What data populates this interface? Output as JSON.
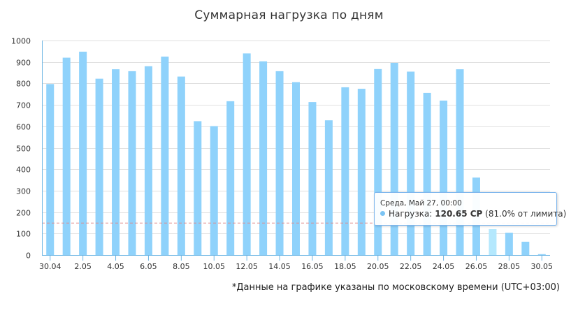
{
  "chart_data": {
    "type": "bar",
    "title": "Суммарная нагрузка по дням",
    "ylim": [
      0,
      1000
    ],
    "yticks": [
      0,
      100,
      200,
      300,
      400,
      500,
      600,
      700,
      800,
      900,
      1000
    ],
    "xtick_labels": [
      "30.04",
      "2.05",
      "4.05",
      "6.05",
      "8.05",
      "10.05",
      "12.05",
      "14.05",
      "16.05",
      "18.05",
      "20.05",
      "22.05",
      "24.05",
      "26.05",
      "28.05",
      "30.05"
    ],
    "categories": [
      "30.04",
      "1.05",
      "2.05",
      "3.05",
      "4.05",
      "5.05",
      "6.05",
      "7.05",
      "8.05",
      "9.05",
      "10.05",
      "11.05",
      "12.05",
      "13.05",
      "14.05",
      "15.05",
      "16.05",
      "17.05",
      "18.05",
      "19.05",
      "20.05",
      "21.05",
      "22.05",
      "23.05",
      "24.05",
      "25.05",
      "26.05",
      "27.05",
      "28.05",
      "29.05",
      "30.05"
    ],
    "values": [
      797,
      920,
      948,
      822,
      866,
      857,
      880,
      925,
      832,
      624,
      601,
      717,
      940,
      903,
      857,
      806,
      713,
      628,
      782,
      775,
      867,
      896,
      855,
      756,
      720,
      866,
      361,
      120.65,
      104,
      62,
      4
    ],
    "highlight_index": 27,
    "limit_line": 149,
    "colors": {
      "bar": "#8fd2fb",
      "highlight": "#b4e8fd",
      "limit_line": "#e08a8a",
      "grid": "#e0e0e0",
      "axis": "#6fb6e4"
    },
    "tooltip": {
      "header": "Среда, Май 27, 00:00",
      "series": "Нагрузка",
      "value": "120.65 CP",
      "percent": "(81.0% от лимита)"
    }
  },
  "footnote": "*Данные на графике указаны по московскому времени (UTC+03:00)"
}
